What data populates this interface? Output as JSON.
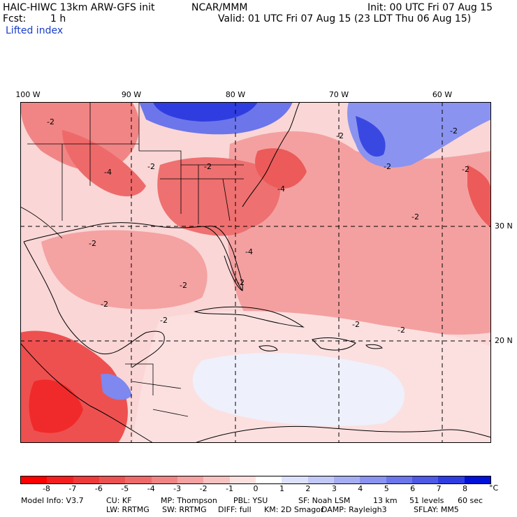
{
  "header": {
    "model": "HAIC-HIWC 13km ARW-GFS init",
    "org": "NCAR/MMM",
    "init": "Init: 00 UTC Fri 07 Aug 15",
    "fcst_label": "Fcst:",
    "fcst_value": "1 h",
    "valid": "Valid: 01 UTC Fri 07 Aug 15 (23 LDT Thu 06 Aug 15)",
    "field": "Lifted index"
  },
  "map": {
    "lon_labels": [
      "100 W",
      "90 W",
      "80 W",
      "70 W",
      "60 W"
    ],
    "lat_labels": [
      "30 N",
      "20 N"
    ],
    "contour_labels": [
      "-2",
      "-4",
      "-2",
      "-2",
      "-4",
      "-2",
      "-2",
      "-2",
      "-4",
      "-2",
      "-2",
      "-2",
      "-2",
      "-2",
      "-2",
      "-2",
      "-2",
      "-2"
    ]
  },
  "colorbar": {
    "ticks": [
      "-8",
      "-7",
      "-6",
      "-5",
      "-4",
      "-3",
      "-2",
      "-1",
      "0",
      "1",
      "2",
      "3",
      "4",
      "5",
      "6",
      "7",
      "8"
    ],
    "unit": "°C",
    "colors": [
      "#ff0000",
      "#f51e1e",
      "#ee3a3a",
      "#ec5252",
      "#ee6a6a",
      "#f18585",
      "#f5a2a2",
      "#f8c2c2",
      "#fce0e0",
      "#ffffff",
      "#dde1fb",
      "#c3c9f7",
      "#a6aef3",
      "#8a93ef",
      "#6c76ea",
      "#4e59e5",
      "#2f3de0",
      "#0011d8"
    ]
  },
  "model_info": {
    "line1": [
      "Model Info: V3.7",
      "CU: KF",
      "MP: Thompson",
      "PBL: YSU",
      "SF: Noah LSM",
      "13 km",
      "51 levels",
      "60 sec"
    ],
    "line2": [
      "LW: RRTMG",
      "SW: RRTMG",
      "DIFF: full",
      "KM: 2D Smagor",
      "DAMP: Rayleigh3",
      "SFLAY: MM5"
    ]
  }
}
